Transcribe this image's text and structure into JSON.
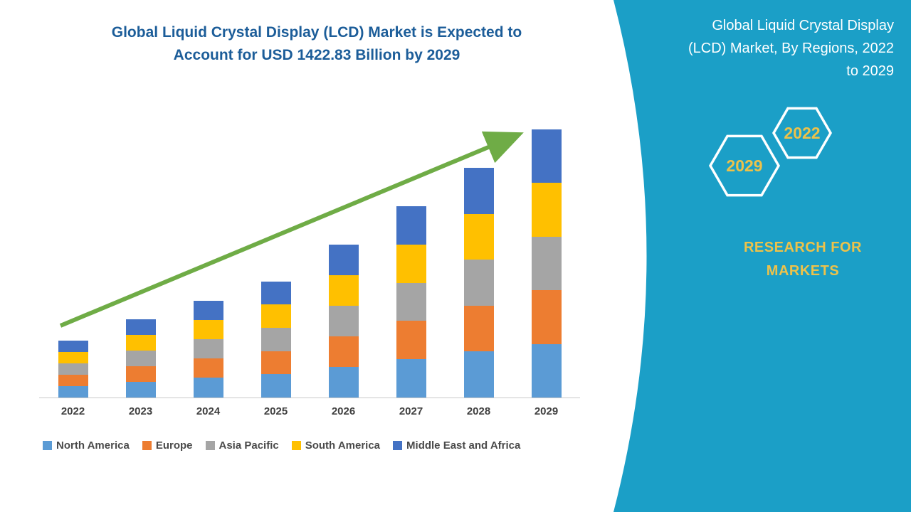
{
  "page": {
    "title_lines": [
      "Global Liquid Crystal Display (LCD) Market is Expected to",
      "Account for USD 1422.83 Billion by 2029"
    ]
  },
  "side_panel": {
    "title_lines": [
      "Global Liquid Crystal Display",
      "(LCD) Market, By Regions, 2022",
      "to 2029"
    ],
    "hexagon_back_label": "2029",
    "hexagon_front_label": "2022",
    "brand_lines": [
      "RESEARCH FOR",
      "MARKETS"
    ],
    "colors": {
      "background": "#1B9FC7",
      "text": "#FFFFFF",
      "accent_yellow": "#EDC24A"
    }
  },
  "chart_data": {
    "type": "bar",
    "stacked": true,
    "title": "Global Liquid Crystal Display (LCD) Market is Expected to Account for USD 1422.83 Billion by 2029",
    "unit": "USD Billion",
    "categories": [
      "2022",
      "2023",
      "2024",
      "2025",
      "2026",
      "2027",
      "2028",
      "2029"
    ],
    "series": [
      {
        "name": "North America",
        "color": "#5B9BD5",
        "values": [
          62,
          84,
          104,
          124,
          162,
          203,
          244,
          285
        ]
      },
      {
        "name": "Europe",
        "color": "#ED7D31",
        "values": [
          60,
          83,
          103,
          123,
          162,
          203,
          244,
          285
        ]
      },
      {
        "name": "Asia Pacific",
        "color": "#A5A5A5",
        "values": [
          60,
          83,
          102,
          123,
          162,
          203,
          243,
          284
        ]
      },
      {
        "name": "South America",
        "color": "#FFC000",
        "values": [
          60,
          83,
          102,
          123,
          163,
          203,
          244,
          284
        ]
      },
      {
        "name": "Middle East and Africa",
        "color": "#4472C4",
        "values": [
          60,
          82,
          102,
          122,
          162,
          203,
          243,
          284.83
        ]
      }
    ],
    "totals": [
      302,
      415,
      513,
      615,
      811,
      1015,
      1218,
      1422.83
    ],
    "ylim": [
      0,
      1500
    ],
    "legend_position": "bottom",
    "annotations": [
      "green upward trend arrow from 2022 to 2029"
    ],
    "arrow_color": "#6FAC46"
  }
}
